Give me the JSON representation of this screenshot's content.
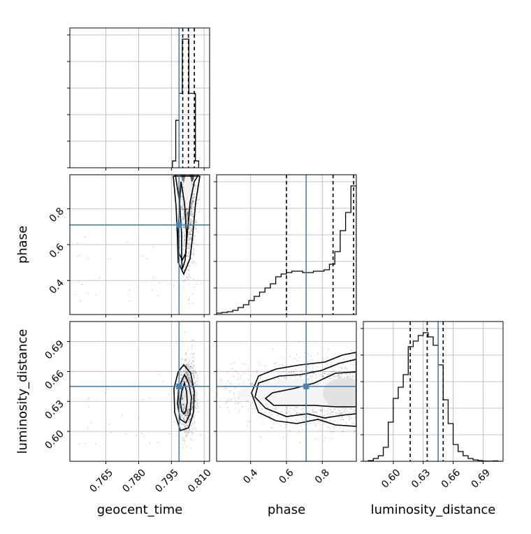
{
  "chart_data": {
    "type": "corner",
    "parameters": [
      "geocent_time",
      "phase",
      "luminosity_distance"
    ],
    "truths": {
      "geocent_time": 0.7985,
      "phase": 0.71,
      "luminosity_distance": 0.645
    },
    "truth_color": "#4682b4",
    "ranges": {
      "geocent_time": [
        0.7485,
        0.8125
      ],
      "phase": [
        0.21,
        0.99
      ],
      "luminosity_distance": [
        0.57,
        0.71
      ]
    },
    "ticks": {
      "geocent_time": {
        "values": [
          0.765,
          0.78,
          0.795,
          0.81
        ],
        "labels": [
          "0.765",
          "0.780",
          "0.795",
          "0.810"
        ]
      },
      "phase": {
        "values": [
          0.4,
          0.6,
          0.8
        ],
        "labels": [
          "0.4",
          "0.6",
          "0.8"
        ]
      },
      "luminosity_distance": {
        "values": [
          0.6,
          0.63,
          0.66,
          0.69
        ],
        "labels": [
          "0.60",
          "0.63",
          "0.66",
          "0.69"
        ]
      }
    },
    "quantiles": {
      "geocent_time": [
        0.8002,
        0.8028,
        0.8055
      ],
      "phase": [
        0.6,
        0.86,
        0.975
      ],
      "luminosity_distance": [
        0.617,
        0.634,
        0.65
      ]
    },
    "histograms": {
      "geocent_time": {
        "edges": [
          0.7955,
          0.797,
          0.7985,
          0.8,
          0.8015,
          0.803,
          0.8045,
          0.806,
          0.8075
        ],
        "counts": [
          0.05,
          0.35,
          0.55,
          0.95,
          0.95,
          0.55,
          0.55,
          0.05
        ]
      },
      "phase": {
        "edges": [
          0.21,
          0.24,
          0.27,
          0.3,
          0.33,
          0.36,
          0.39,
          0.42,
          0.45,
          0.48,
          0.51,
          0.54,
          0.57,
          0.6,
          0.63,
          0.66,
          0.69,
          0.72,
          0.75,
          0.78,
          0.81,
          0.84,
          0.87,
          0.9,
          0.93,
          0.96,
          0.99
        ],
        "counts": [
          0.01,
          0.015,
          0.02,
          0.03,
          0.05,
          0.07,
          0.1,
          0.13,
          0.16,
          0.19,
          0.22,
          0.27,
          0.29,
          0.3,
          0.31,
          0.31,
          0.3,
          0.3,
          0.31,
          0.31,
          0.32,
          0.36,
          0.45,
          0.6,
          0.73,
          0.92
        ]
      },
      "luminosity_distance": {
        "edges": [
          0.57,
          0.575,
          0.58,
          0.585,
          0.59,
          0.595,
          0.6,
          0.605,
          0.61,
          0.615,
          0.62,
          0.625,
          0.63,
          0.635,
          0.64,
          0.645,
          0.65,
          0.655,
          0.66,
          0.665,
          0.67,
          0.675,
          0.68,
          0.685,
          0.69,
          0.695,
          0.7,
          0.705,
          0.71
        ],
        "counts": [
          0.0,
          0.005,
          0.02,
          0.04,
          0.1,
          0.28,
          0.45,
          0.53,
          0.62,
          0.82,
          0.86,
          0.9,
          0.92,
          0.89,
          0.83,
          0.69,
          0.44,
          0.27,
          0.12,
          0.07,
          0.04,
          0.02,
          0.01,
          0.005,
          0.002,
          0.001,
          0.003,
          0.0
        ]
      }
    },
    "grid": true
  }
}
